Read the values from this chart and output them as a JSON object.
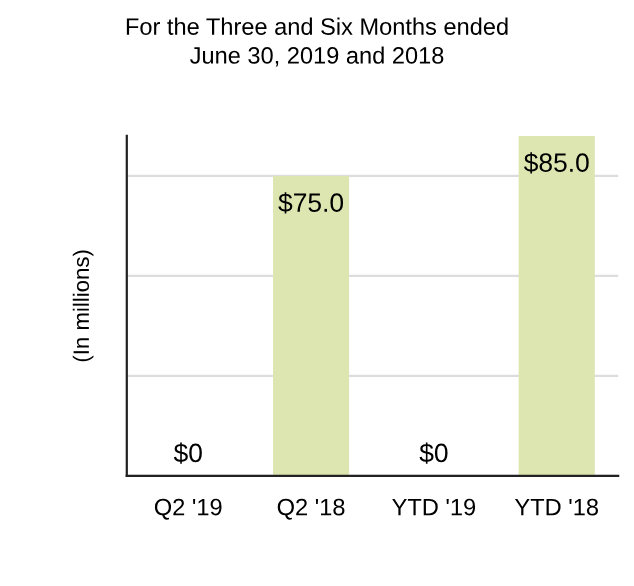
{
  "chart_data": {
    "type": "bar",
    "title": "For the Three and Six Months ended\nJune 30, 2019 and 2018",
    "ylabel": "(In millions)",
    "categories": [
      "Q2 '19",
      "Q2 '18",
      "YTD '19",
      "YTD '18"
    ],
    "values": [
      0,
      75.0,
      0,
      85.0
    ],
    "value_labels": [
      "$0",
      "$75.0",
      "$0",
      "$85.0"
    ],
    "color": "#dde5b0",
    "ylim": [
      0,
      85
    ],
    "yticks": [
      {
        "value": 0,
        "label": null
      },
      {
        "value": 25,
        "label": null
      },
      {
        "value": 50,
        "label": null
      },
      {
        "value": 75,
        "label": null
      }
    ],
    "grid": "y",
    "tick_labels": "x"
  }
}
